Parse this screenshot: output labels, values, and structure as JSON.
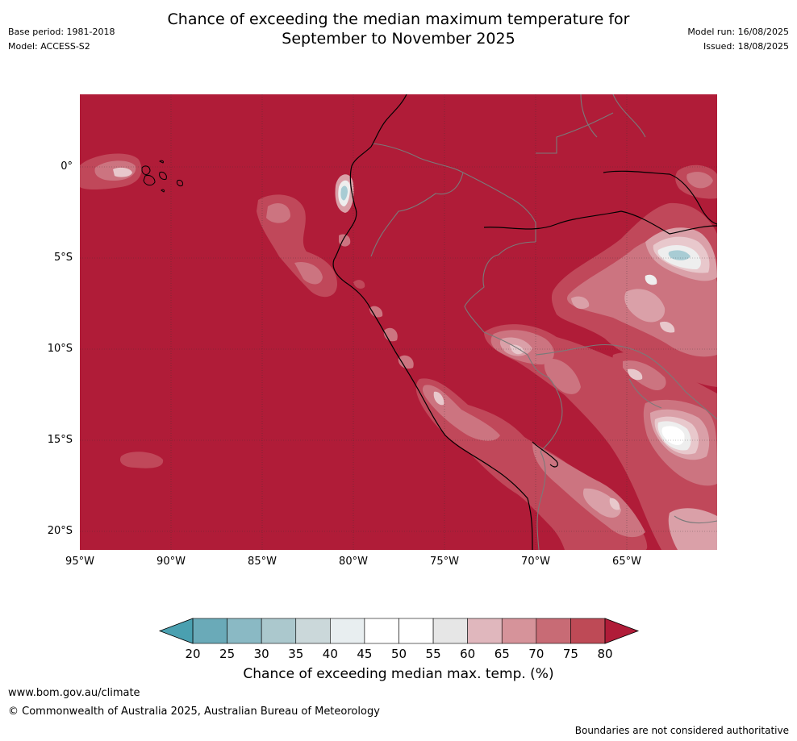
{
  "title_line1": "Chance of exceeding the median maximum temperature for",
  "title_line2": "September to November 2025",
  "base_period": "Base period: 1981-2018",
  "model": "Model: ACCESS-S2",
  "model_run": "Model run: 16/08/2025",
  "issued": "Issued: 18/08/2025",
  "lat_labels": [
    "0°",
    "5°S",
    "10°S",
    "15°S",
    "20°S"
  ],
  "lon_labels": [
    "95°W",
    "90°W",
    "85°W",
    "80°W",
    "75°W",
    "70°W",
    "65°W"
  ],
  "colorbar": {
    "ticks": [
      "20",
      "25",
      "30",
      "35",
      "40",
      "45",
      "50",
      "55",
      "60",
      "65",
      "70",
      "75",
      "80"
    ],
    "colors": [
      "#6aaab8",
      "#8ab9c4",
      "#abc8cd",
      "#cbd8da",
      "#e8eef0",
      "#ffffff",
      "#ffffff",
      "#e6e6e6",
      "#e0b7bd",
      "#d6939a",
      "#c86b75",
      "#be4a56"
    ],
    "low_color": "#4aa0b0",
    "high_color": "#b01c38",
    "title": "Chance of exceeding median max. temp. (%)"
  },
  "map_colors": {
    "dominant": "#b01c38",
    "c75": "#c0485a",
    "c70": "#cc7480",
    "c65": "#daa0a8",
    "c60": "#e8c8cc",
    "c55": "#eeeeee",
    "c50": "#ffffff",
    "cool": "#a8ccd4"
  },
  "website": "www.bom.gov.au/climate",
  "copyright": "© Commonwealth of Australia 2025, Australian Bureau of Meteorology",
  "disclaimer": "Boundaries are not considered authoritative"
}
